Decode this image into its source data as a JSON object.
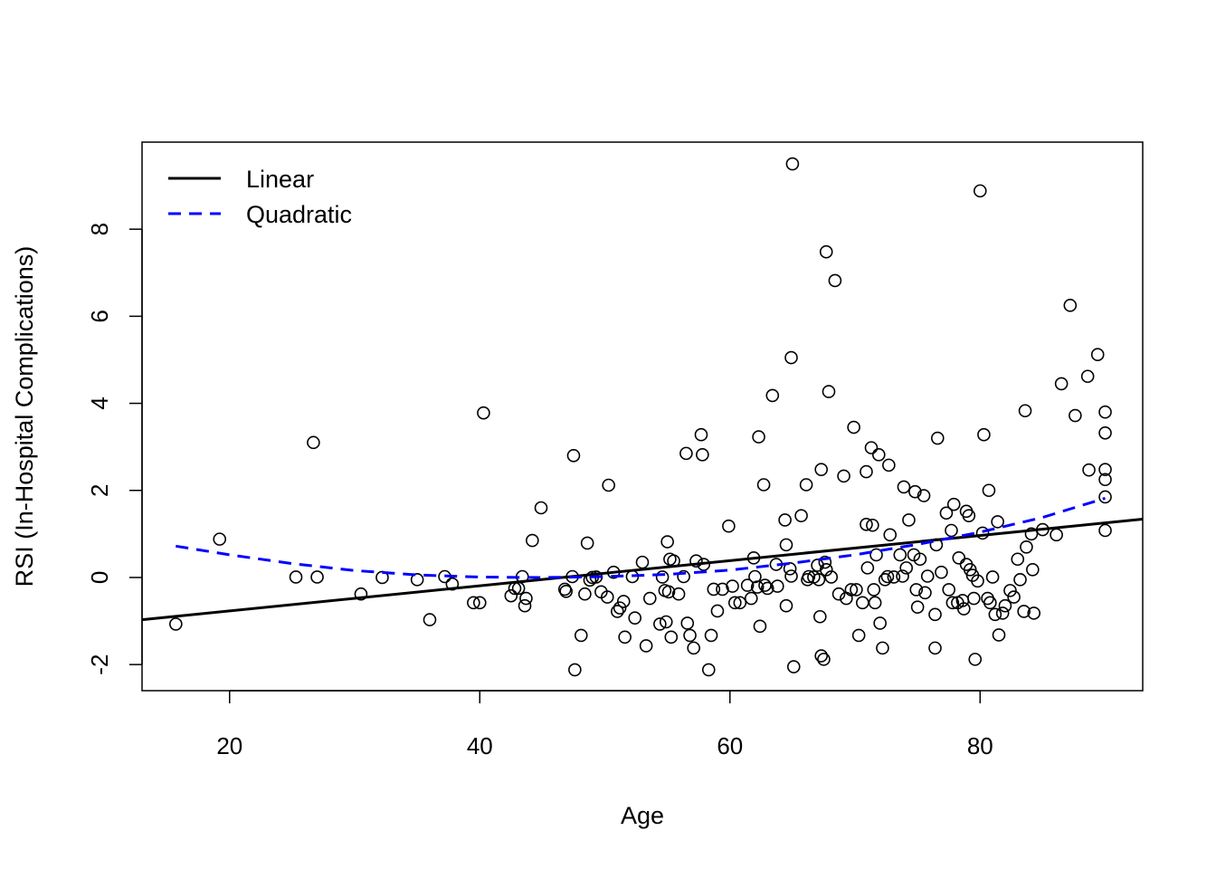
{
  "chart_data": {
    "type": "scatter",
    "title": "",
    "xlabel": "Age",
    "ylabel": "RSI (In-Hospital Complications)",
    "xlim": [
      13,
      93
    ],
    "ylim": [
      -2.6,
      10
    ],
    "x_ticks": [
      20,
      40,
      60,
      80
    ],
    "y_ticks": [
      -2,
      0,
      2,
      4,
      6,
      8
    ],
    "grid": false,
    "legend_position": "top-left",
    "legend": [
      {
        "label": "Linear",
        "color": "#000000",
        "style": "solid"
      },
      {
        "label": "Quadratic",
        "color": "#0000ff",
        "style": "dashed"
      }
    ],
    "marker_color": "#000000",
    "series": [
      {
        "name": "Linear",
        "kind": "line",
        "color": "#000000",
        "style": "solid",
        "x": [
          13,
          93
        ],
        "y": [
          -0.97,
          1.34
        ]
      },
      {
        "name": "Quadratic",
        "kind": "line",
        "color": "#0000ff",
        "style": "dashed",
        "x": [
          15.7,
          20,
          25,
          30,
          35,
          40,
          45,
          50,
          55,
          60,
          65,
          70,
          75,
          80,
          85,
          90
        ],
        "y": [
          0.72,
          0.52,
          0.32,
          0.16,
          0.06,
          0.01,
          0.0,
          0.02,
          0.07,
          0.17,
          0.33,
          0.52,
          0.76,
          1.04,
          1.38,
          1.82
        ]
      }
    ],
    "points": [
      [
        15.7,
        -1.07
      ],
      [
        19.2,
        0.88
      ],
      [
        25.3,
        0.01
      ],
      [
        26.7,
        3.1
      ],
      [
        27.0,
        0.01
      ],
      [
        30.5,
        -0.38
      ],
      [
        32.2,
        0.0
      ],
      [
        35.0,
        -0.05
      ],
      [
        36.0,
        -0.97
      ],
      [
        37.2,
        0.02
      ],
      [
        37.8,
        -0.15
      ],
      [
        39.5,
        -0.58
      ],
      [
        40.0,
        -0.58
      ],
      [
        40.3,
        3.78
      ],
      [
        42.5,
        -0.42
      ],
      [
        42.8,
        -0.25
      ],
      [
        43.1,
        -0.25
      ],
      [
        43.4,
        0.02
      ],
      [
        43.7,
        -0.48
      ],
      [
        43.6,
        -0.65
      ],
      [
        44.2,
        0.85
      ],
      [
        44.9,
        1.6
      ],
      [
        46.8,
        -0.27
      ],
      [
        46.9,
        -0.32
      ],
      [
        47.4,
        0.02
      ],
      [
        47.5,
        2.8
      ],
      [
        47.6,
        -2.12
      ],
      [
        48.1,
        -1.33
      ],
      [
        48.4,
        -0.38
      ],
      [
        48.6,
        0.79
      ],
      [
        48.8,
        -0.06
      ],
      [
        49.0,
        0.0
      ],
      [
        49.3,
        0.01
      ],
      [
        49.7,
        -0.33
      ],
      [
        50.2,
        -0.45
      ],
      [
        50.3,
        2.12
      ],
      [
        50.7,
        0.12
      ],
      [
        51.0,
        -0.78
      ],
      [
        51.2,
        -0.7
      ],
      [
        51.5,
        -0.55
      ],
      [
        51.6,
        -1.37
      ],
      [
        52.2,
        0.02
      ],
      [
        52.4,
        -0.93
      ],
      [
        53.0,
        0.35
      ],
      [
        53.3,
        -1.57
      ],
      [
        53.6,
        -0.48
      ],
      [
        54.4,
        -1.07
      ],
      [
        54.6,
        0.01
      ],
      [
        54.8,
        -0.3
      ],
      [
        54.9,
        -1.02
      ],
      [
        55.0,
        0.82
      ],
      [
        55.1,
        -0.33
      ],
      [
        55.2,
        0.42
      ],
      [
        55.3,
        -1.37
      ],
      [
        55.5,
        0.38
      ],
      [
        55.9,
        -0.38
      ],
      [
        56.3,
        0.02
      ],
      [
        56.5,
        2.85
      ],
      [
        56.6,
        -1.05
      ],
      [
        56.8,
        -1.33
      ],
      [
        57.1,
        -1.62
      ],
      [
        57.3,
        0.38
      ],
      [
        57.7,
        3.28
      ],
      [
        57.8,
        2.82
      ],
      [
        57.9,
        0.3
      ],
      [
        58.3,
        -2.12
      ],
      [
        58.5,
        -1.33
      ],
      [
        58.7,
        -0.27
      ],
      [
        59.0,
        -0.77
      ],
      [
        59.4,
        -0.27
      ],
      [
        59.9,
        1.18
      ],
      [
        60.2,
        -0.2
      ],
      [
        60.4,
        -0.58
      ],
      [
        60.8,
        -0.58
      ],
      [
        61.4,
        -0.18
      ],
      [
        61.7,
        -0.48
      ],
      [
        61.9,
        0.45
      ],
      [
        62.0,
        0.02
      ],
      [
        62.2,
        -0.22
      ],
      [
        62.3,
        3.23
      ],
      [
        62.4,
        -1.12
      ],
      [
        62.7,
        2.13
      ],
      [
        62.8,
        -0.18
      ],
      [
        63.0,
        -0.25
      ],
      [
        63.4,
        4.18
      ],
      [
        63.7,
        0.3
      ],
      [
        63.8,
        -0.2
      ],
      [
        64.4,
        1.32
      ],
      [
        64.5,
        -0.65
      ],
      [
        64.5,
        0.75
      ],
      [
        64.8,
        0.2
      ],
      [
        64.9,
        0.03
      ],
      [
        64.9,
        5.05
      ],
      [
        65.0,
        9.5
      ],
      [
        65.1,
        -2.05
      ],
      [
        65.7,
        1.42
      ],
      [
        66.1,
        2.13
      ],
      [
        66.2,
        -0.05
      ],
      [
        66.3,
        0.02
      ],
      [
        66.7,
        0.01
      ],
      [
        67.0,
        0.28
      ],
      [
        67.1,
        -0.05
      ],
      [
        67.2,
        -0.9
      ],
      [
        67.3,
        2.48
      ],
      [
        67.3,
        -1.8
      ],
      [
        67.5,
        -1.88
      ],
      [
        67.6,
        0.35
      ],
      [
        67.7,
        7.48
      ],
      [
        67.7,
        0.18
      ],
      [
        67.9,
        4.27
      ],
      [
        68.1,
        0.01
      ],
      [
        68.4,
        6.82
      ],
      [
        68.7,
        -0.38
      ],
      [
        69.1,
        2.33
      ],
      [
        69.3,
        -0.48
      ],
      [
        69.7,
        -0.28
      ],
      [
        69.9,
        3.45
      ],
      [
        70.1,
        -0.28
      ],
      [
        70.3,
        -1.33
      ],
      [
        70.6,
        -0.58
      ],
      [
        70.9,
        1.22
      ],
      [
        70.9,
        2.43
      ],
      [
        71.0,
        0.22
      ],
      [
        71.3,
        2.98
      ],
      [
        71.5,
        -0.28
      ],
      [
        71.4,
        1.2
      ],
      [
        71.6,
        -0.58
      ],
      [
        71.7,
        0.52
      ],
      [
        71.9,
        2.82
      ],
      [
        72.0,
        -1.05
      ],
      [
        72.2,
        -1.62
      ],
      [
        72.4,
        -0.05
      ],
      [
        72.6,
        0.02
      ],
      [
        72.7,
        2.58
      ],
      [
        72.8,
        0.98
      ],
      [
        73.1,
        0.01
      ],
      [
        73.6,
        0.52
      ],
      [
        73.8,
        0.03
      ],
      [
        73.9,
        2.08
      ],
      [
        74.1,
        0.22
      ],
      [
        74.3,
        1.32
      ],
      [
        74.7,
        0.52
      ],
      [
        74.8,
        1.97
      ],
      [
        74.9,
        -0.28
      ],
      [
        75.0,
        -0.68
      ],
      [
        75.2,
        0.42
      ],
      [
        75.5,
        1.88
      ],
      [
        75.6,
        -0.35
      ],
      [
        75.8,
        0.03
      ],
      [
        76.4,
        -0.85
      ],
      [
        76.4,
        -1.62
      ],
      [
        76.5,
        0.75
      ],
      [
        76.6,
        3.2
      ],
      [
        76.9,
        0.12
      ],
      [
        77.3,
        1.48
      ],
      [
        77.5,
        -0.28
      ],
      [
        77.7,
        1.08
      ],
      [
        77.8,
        -0.58
      ],
      [
        77.9,
        1.68
      ],
      [
        78.2,
        -0.58
      ],
      [
        78.3,
        0.45
      ],
      [
        78.6,
        -0.53
      ],
      [
        78.7,
        -0.72
      ],
      [
        78.9,
        1.52
      ],
      [
        78.9,
        0.3
      ],
      [
        79.1,
        1.42
      ],
      [
        79.2,
        0.18
      ],
      [
        79.4,
        0.05
      ],
      [
        79.5,
        -0.48
      ],
      [
        79.6,
        -1.88
      ],
      [
        79.8,
        -0.08
      ],
      [
        80.2,
        1.02
      ],
      [
        80.3,
        3.28
      ],
      [
        80.6,
        -0.48
      ],
      [
        80.7,
        2.0
      ],
      [
        80.8,
        -0.58
      ],
      [
        81.0,
        0.01
      ],
      [
        81.2,
        -0.85
      ],
      [
        81.4,
        1.28
      ],
      [
        81.5,
        -1.32
      ],
      [
        81.8,
        -0.82
      ],
      [
        82.0,
        -0.65
      ],
      [
        82.4,
        -0.3
      ],
      [
        82.7,
        -0.45
      ],
      [
        83.0,
        0.42
      ],
      [
        83.2,
        -0.05
      ],
      [
        83.5,
        -0.78
      ],
      [
        83.6,
        3.83
      ],
      [
        83.7,
        0.7
      ],
      [
        84.1,
        1.0
      ],
      [
        84.2,
        0.18
      ],
      [
        84.3,
        -0.82
      ],
      [
        85.0,
        1.1
      ],
      [
        86.1,
        0.98
      ],
      [
        86.5,
        4.45
      ],
      [
        87.2,
        6.25
      ],
      [
        87.6,
        3.72
      ],
      [
        88.6,
        4.62
      ],
      [
        88.7,
        2.47
      ],
      [
        89.4,
        5.12
      ],
      [
        90.0,
        3.8
      ],
      [
        90.0,
        3.32
      ],
      [
        90.0,
        2.48
      ],
      [
        90.0,
        2.25
      ],
      [
        90.0,
        1.85
      ],
      [
        90.0,
        1.08
      ],
      [
        80.0,
        8.88
      ]
    ]
  }
}
